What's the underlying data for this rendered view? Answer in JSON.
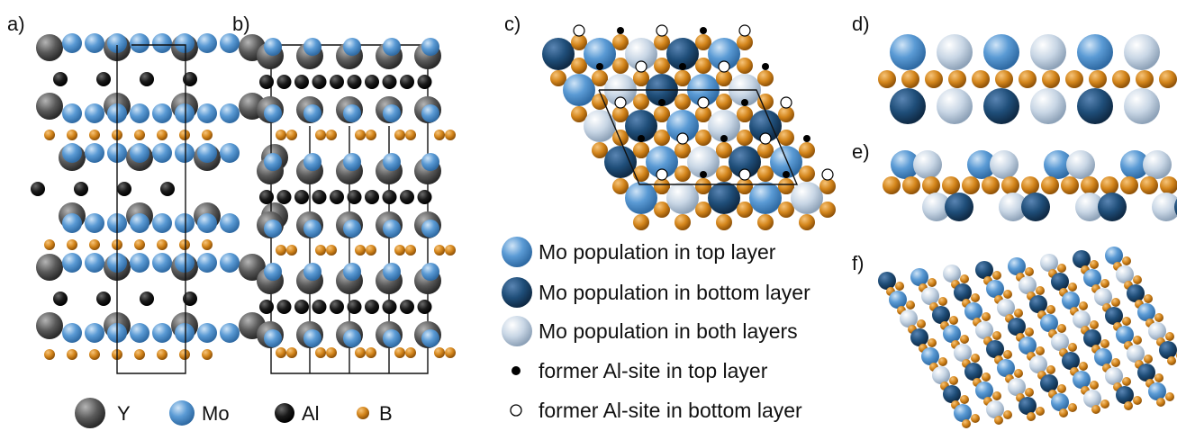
{
  "panels": {
    "a": "a)",
    "b": "b)",
    "c": "c)",
    "d": "d)",
    "e": "e)",
    "f": "f)"
  },
  "species_legend": [
    {
      "label": "Y",
      "color": "#5a5a5a",
      "icon": "y-atom-icon"
    },
    {
      "label": "Mo",
      "color": "#5b9bd5",
      "icon": "mo-atom-icon"
    },
    {
      "label": "Al",
      "color": "#1a1a1a",
      "icon": "al-atom-icon"
    },
    {
      "label": "B",
      "color": "#d4861c",
      "icon": "b-atom-icon"
    }
  ],
  "population_legend": [
    {
      "label": "Mo population in top layer",
      "color": "#5b9bd5",
      "icon": "mo-top-icon"
    },
    {
      "label": "Mo population in bottom layer",
      "color": "#1f4e79",
      "icon": "mo-bottom-icon"
    },
    {
      "label": "Mo population in both layers",
      "color": "#c8d6e5",
      "icon": "mo-both-icon"
    },
    {
      "label": "former Al-site in top layer",
      "color": "#000000",
      "icon": "al-top-icon"
    },
    {
      "label": "former Al-site in bottom layer",
      "color": "#ffffff",
      "icon": "al-bottom-icon"
    }
  ]
}
